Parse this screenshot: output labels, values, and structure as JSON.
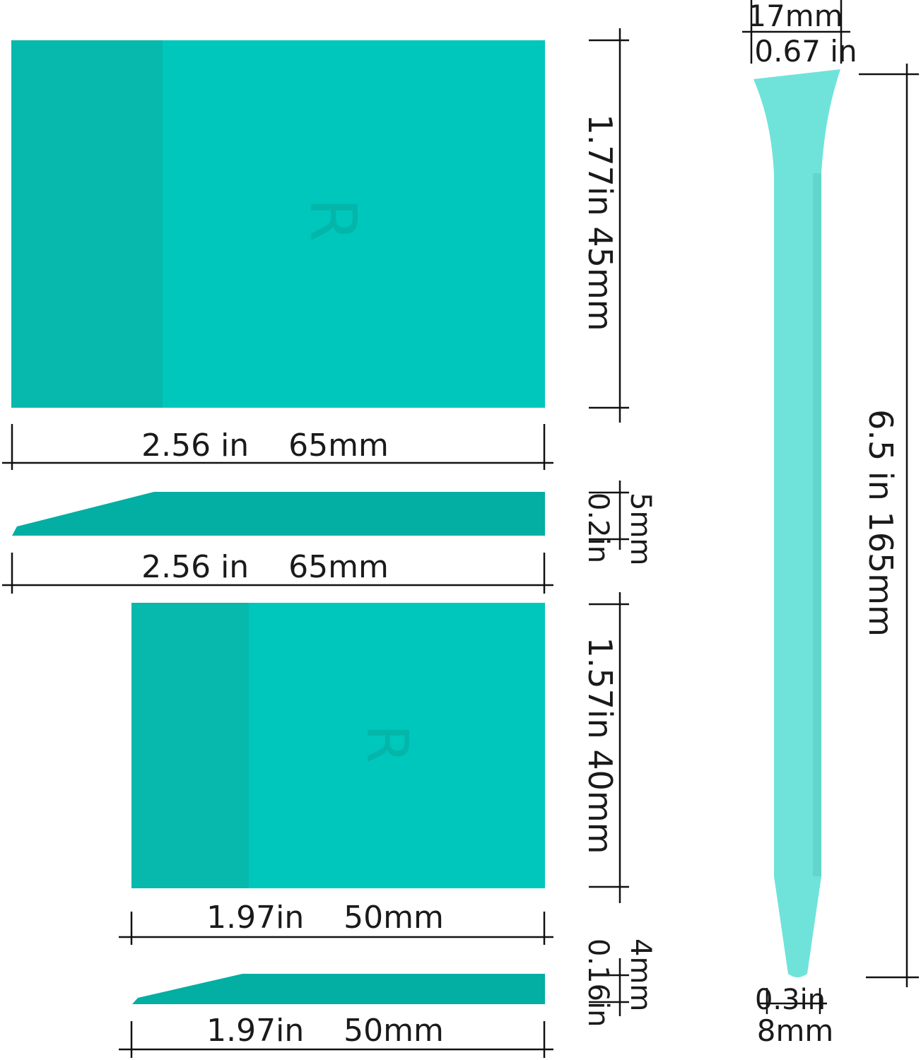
{
  "colors": {
    "card": "#00c7bb",
    "card_strip": "#07b8ad",
    "profile": "#03aea3",
    "stick": "#6fe3da",
    "line": "#111111"
  },
  "large_scraper": {
    "logo_letter": "R",
    "height_label": "1.77in  45mm",
    "width_label": "2.56 in    65mm",
    "thickness_in": "0.2in",
    "thickness_mm": "5mm",
    "profile_width_label": "2.56 in    65mm"
  },
  "small_scraper": {
    "logo_letter": "R",
    "height_label": "1.57in  40mm",
    "width_label": "1.97in    50mm",
    "thickness_in": "0.16in",
    "thickness_mm": "4mm",
    "profile_width_label": "1.97in    50mm"
  },
  "stick": {
    "top_mm": "17mm",
    "top_in": "0.67 in",
    "length_label": "6.5 in  165mm",
    "tip_in": "0.3in",
    "tip_mm": "8mm"
  }
}
